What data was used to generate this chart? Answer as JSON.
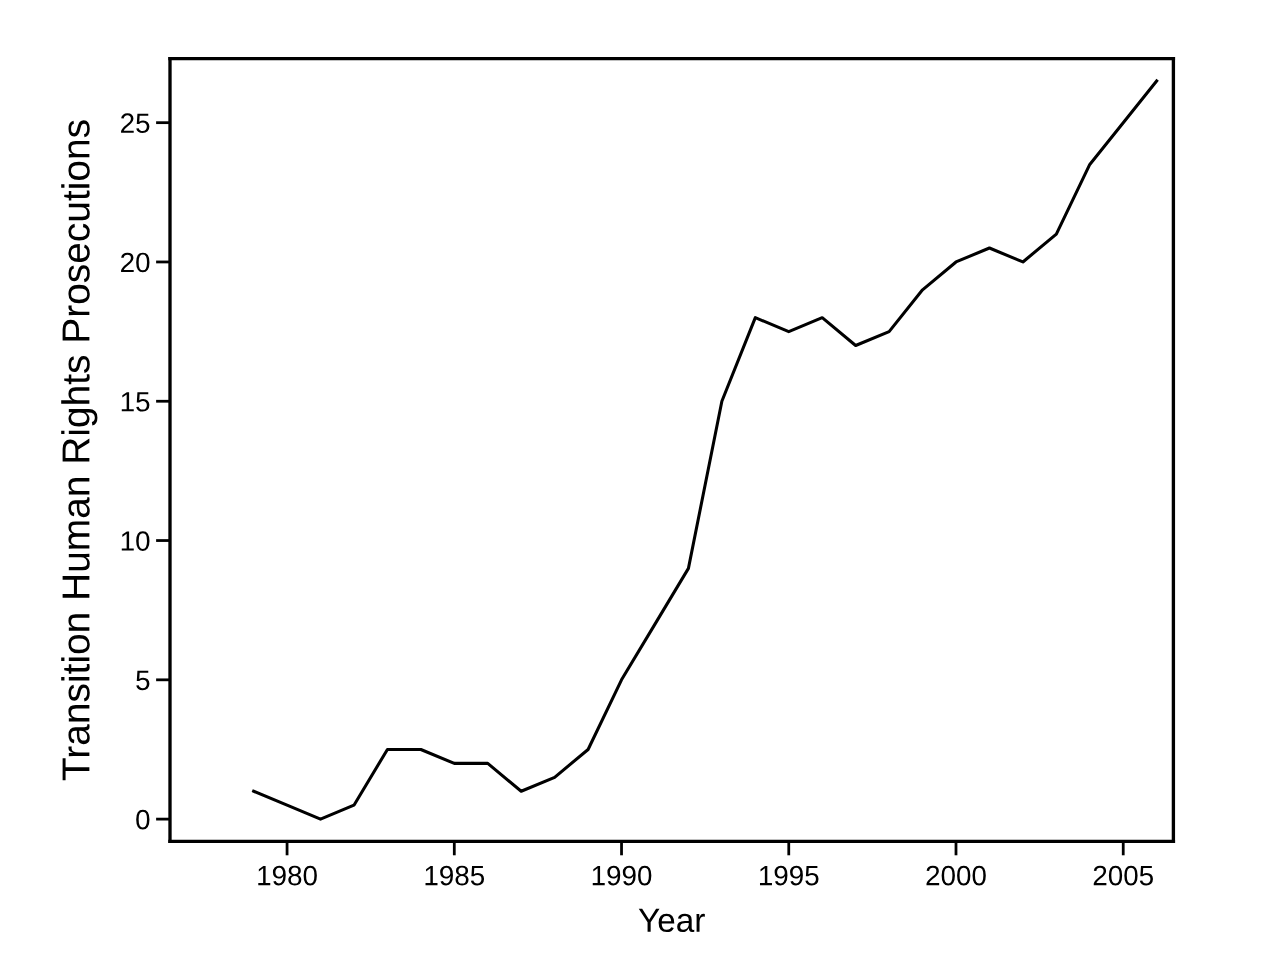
{
  "chart_data": {
    "type": "line",
    "xlabel": "Year",
    "ylabel": "Transition Human Rights Prosecutions",
    "x": [
      1979,
      1980,
      1981,
      1982,
      1983,
      1984,
      1985,
      1986,
      1987,
      1988,
      1989,
      1990,
      1991,
      1992,
      1993,
      1994,
      1995,
      1996,
      1997,
      1998,
      1999,
      2000,
      2001,
      2002,
      2003,
      2004,
      2005,
      2006
    ],
    "series": [
      {
        "color": "#000000",
        "values": [
          1,
          0.5,
          0,
          0.5,
          2.5,
          2.5,
          2,
          2,
          1,
          1.5,
          2.5,
          5,
          7,
          9,
          15,
          18,
          17.5,
          18,
          17,
          17.5,
          19,
          20,
          20.5,
          20,
          21,
          23.5,
          25,
          26.5
        ]
      }
    ],
    "xlim": [
      1976.5,
      2006.5
    ],
    "ylim": [
      -0.8,
      27.3
    ],
    "xticks": [
      1980,
      1985,
      1990,
      1995,
      2000,
      2005
    ],
    "yticks": [
      0,
      5,
      10,
      15,
      20,
      25
    ],
    "grid": false,
    "marker": "none",
    "line_style": "solid"
  }
}
